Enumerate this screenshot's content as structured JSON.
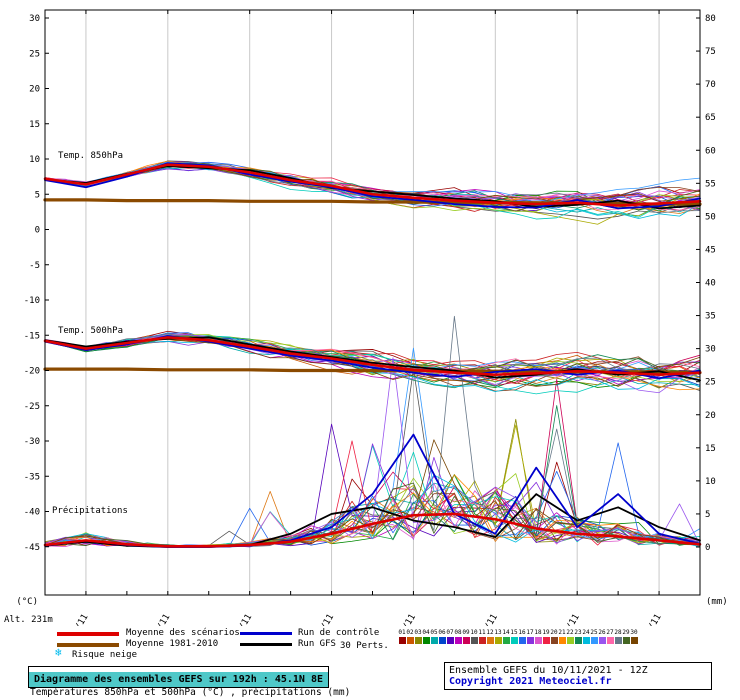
{
  "axes": {
    "left_unit": "(°C)",
    "right_unit": "(mm)",
    "alt": "Alt. 231m"
  },
  "legend": {
    "mean": "Moyenne des scénarios",
    "climato": "Moyenne 1981-2010",
    "control": "Run de contrôle",
    "gfs": "Run GFS",
    "perts": "30 Perts.",
    "snow": "Risque neige"
  },
  "footer": {
    "title": "Diagramme des ensembles GEFS sur 192h : 45.1N 8E",
    "subtitle": "Températures 850hPa et 500hPa (°C) , précipitations (mm)",
    "run": "Ensemble GEFS du 10/11/2021 - 12Z",
    "copyright": "Copyright 2021 Meteociel.fr"
  },
  "chart_data": {
    "type": "line",
    "hours_total": 192,
    "step_hours": 12,
    "x_labels": [
      "11/11",
      "12/11",
      "13/11",
      "14/11",
      "15/11",
      "16/11",
      "17/11",
      "18/11"
    ],
    "x_label_hours": [
      12,
      36,
      60,
      84,
      108,
      132,
      156,
      180
    ],
    "left_axis": {
      "label": "(°C)",
      "ticks": [
        30,
        25,
        20,
        15,
        10,
        5,
        0,
        -5,
        -10,
        -15,
        -20,
        -25,
        -30,
        -35,
        -40,
        -45
      ]
    },
    "right_axis": {
      "label": "(mm)",
      "ticks": [
        80,
        75,
        70,
        65,
        60,
        55,
        50,
        45,
        40,
        35,
        30,
        25,
        20,
        15,
        10,
        5,
        0
      ]
    },
    "series_colors": {
      "mean": "#dd0000",
      "climato": "#8b4a00",
      "control": "#0000cc",
      "gfs": "#000000"
    },
    "panels": {
      "t850": {
        "label": "Temp. 850hPa",
        "mean": [
          7.2,
          6.4,
          7.8,
          9.2,
          8.9,
          8.1,
          7.0,
          6.2,
          5.0,
          4.5,
          4.1,
          3.8,
          3.6,
          3.8,
          3.4,
          3.7,
          4.0
        ],
        "control": [
          7.0,
          6.0,
          7.5,
          9.4,
          9.1,
          7.8,
          6.8,
          6.0,
          4.7,
          4.2,
          3.6,
          3.2,
          3.1,
          4.2,
          3.0,
          3.3,
          4.4
        ],
        "gfs": [
          7.1,
          6.6,
          7.9,
          9.0,
          8.7,
          8.4,
          7.3,
          5.9,
          5.4,
          4.9,
          4.4,
          4.0,
          3.2,
          3.5,
          4.1,
          3.0,
          3.4
        ],
        "climato": [
          4.2,
          4.2,
          4.1,
          4.1,
          4.1,
          4.0,
          4.0,
          4.0,
          3.9,
          3.9,
          3.8,
          3.8,
          3.8,
          3.7,
          3.7,
          3.6,
          3.6
        ],
        "spread": [
          0.3,
          0.5,
          0.6,
          0.7,
          0.8,
          1.0,
          1.2,
          1.3,
          1.5,
          1.6,
          1.8,
          2.0,
          2.0,
          2.2,
          2.4,
          2.6,
          2.8
        ]
      },
      "t500": {
        "label": "Temp. 500hPa",
        "mean": [
          -15.8,
          -16.9,
          -16.1,
          -15.3,
          -15.7,
          -16.6,
          -17.6,
          -18.3,
          -19.2,
          -19.9,
          -20.3,
          -20.6,
          -20.4,
          -20.1,
          -20.3,
          -20.6,
          -20.3
        ],
        "control": [
          -15.9,
          -17.1,
          -16.3,
          -15.1,
          -15.9,
          -16.9,
          -17.9,
          -18.6,
          -19.6,
          -20.3,
          -20.9,
          -20.2,
          -19.8,
          -20.6,
          -20.0,
          -21.1,
          -20.0
        ],
        "gfs": [
          -15.7,
          -16.6,
          -15.9,
          -15.5,
          -15.3,
          -16.3,
          -17.3,
          -18.1,
          -18.9,
          -19.5,
          -20.0,
          -21.0,
          -20.6,
          -19.8,
          -20.6,
          -20.1,
          -21.4
        ],
        "climato": [
          -19.8,
          -19.8,
          -19.8,
          -19.9,
          -19.9,
          -19.9,
          -20.0,
          -20.0,
          -20.0,
          -20.0,
          -20.1,
          -20.1,
          -20.1,
          -20.2,
          -20.2,
          -20.2,
          -20.3
        ],
        "spread": [
          0.3,
          0.5,
          0.7,
          0.8,
          1.0,
          1.2,
          1.5,
          1.7,
          1.8,
          2.0,
          2.2,
          2.4,
          2.5,
          2.6,
          2.8,
          3.0,
          3.2
        ]
      },
      "precip": {
        "label": "Précipitations",
        "mean": [
          0.3,
          1.0,
          0.4,
          0.1,
          0.1,
          0.3,
          0.8,
          2.0,
          3.5,
          4.8,
          5.0,
          4.2,
          2.8,
          2.0,
          1.6,
          1.0,
          0.4
        ],
        "control": [
          0.2,
          1.0,
          0.3,
          0.0,
          0.0,
          0.2,
          1.0,
          3.0,
          8.0,
          17.0,
          5.0,
          2.0,
          12.0,
          3.0,
          8.0,
          2.0,
          0.5
        ],
        "gfs": [
          0.2,
          0.8,
          0.2,
          0.0,
          0.0,
          0.3,
          2.0,
          5.0,
          6.0,
          4.0,
          3.0,
          1.5,
          8.0,
          4.0,
          6.0,
          3.0,
          1.0
        ],
        "activity": [
          0.05,
          0.15,
          0.05,
          0.02,
          0.02,
          0.3,
          0.8,
          1.0,
          1.0,
          1.0,
          0.9,
          0.85,
          0.8,
          0.7,
          0.55,
          0.35,
          0.2
        ]
      }
    },
    "members": {
      "count": 30,
      "seed": 20211110,
      "colors": [
        "#990000",
        "#cc5500",
        "#888800",
        "#008800",
        "#00aaaa",
        "#0044cc",
        "#5500bb",
        "#bb00bb",
        "#cc0055",
        "#555555",
        "#cc2222",
        "#dd7711",
        "#aaaa00",
        "#22aa44",
        "#00ccbb",
        "#2266ee",
        "#8833dd",
        "#dd55cc",
        "#ee2244",
        "#884422",
        "#ff8800",
        "#99cc22",
        "#118855",
        "#00bbdd",
        "#3399ff",
        "#9955ee",
        "#ff66aa",
        "#667788",
        "#446622",
        "#774400"
      ]
    }
  }
}
